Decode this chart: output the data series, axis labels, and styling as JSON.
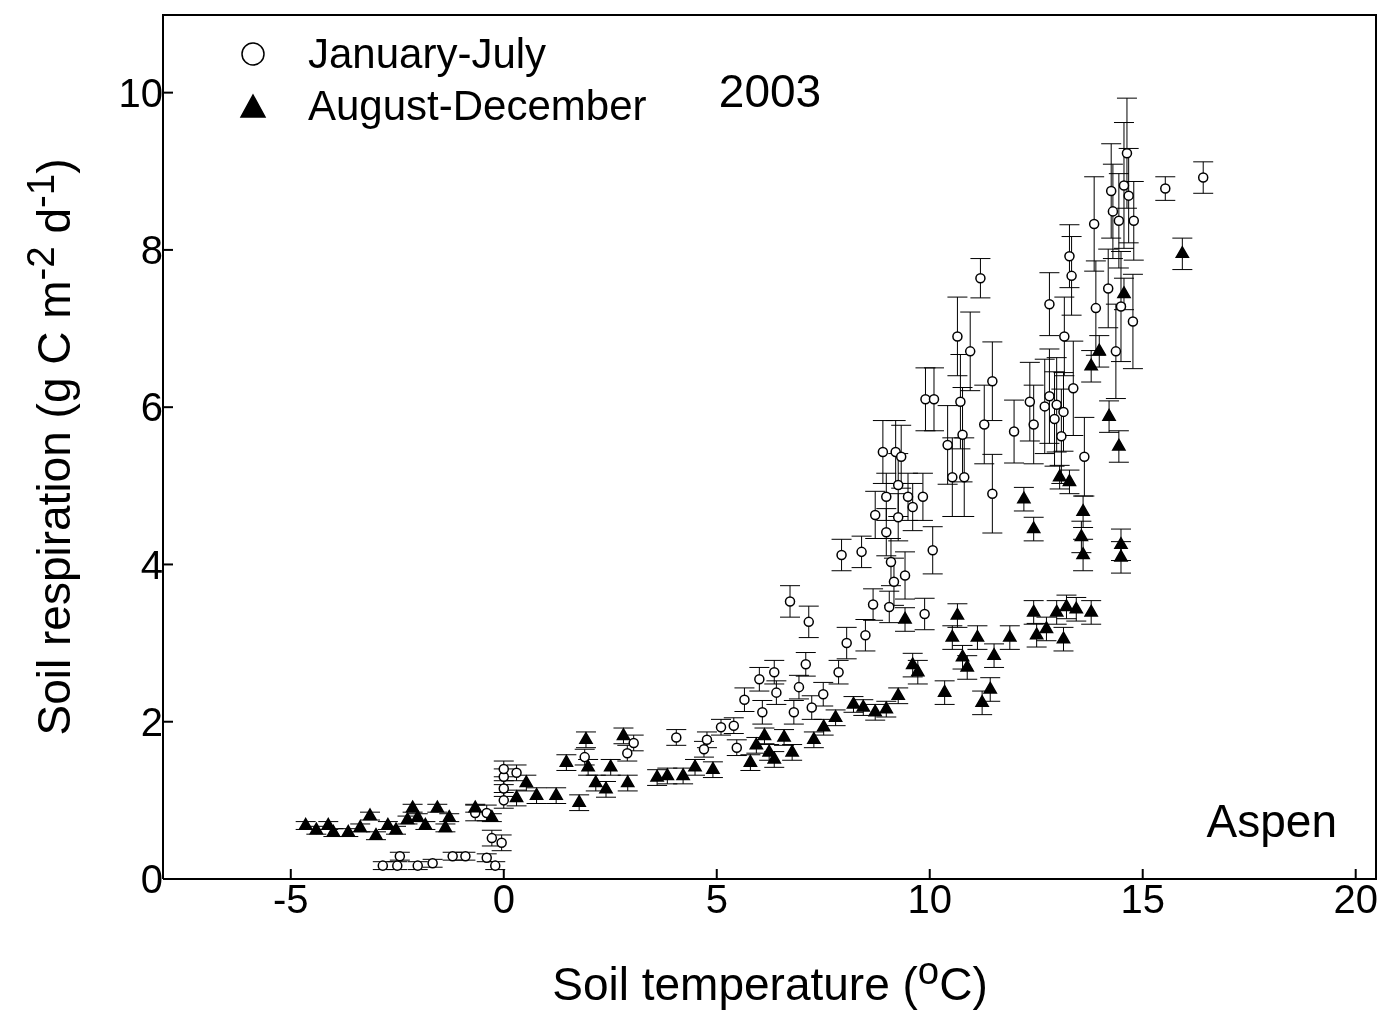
{
  "chart_data": {
    "type": "scatter",
    "xlabel": "Soil temperature ($^{o}$C)",
    "ylabel": "Soil respiration (g C m$^{-2}$ d$^{-1}$)",
    "xlim": [
      -8,
      20.5
    ],
    "xticks": [
      -5,
      0,
      5,
      10,
      15,
      20
    ],
    "ylim": [
      0,
      11
    ],
    "yticks": [
      0,
      2,
      4,
      6,
      8,
      10
    ],
    "legend": "top left",
    "annotations": [
      "2003",
      "Aspen"
    ],
    "series": [
      {
        "name": "January-July",
        "color": "#ffffff",
        "marker": "circle",
        "x": [
          -2.84,
          -2.5,
          -2.44,
          -2.02,
          -1.67,
          -1.2,
          -0.9,
          -0.67,
          -0.4,
          -0.28,
          -0.4,
          -0.2,
          -0.05,
          0,
          0,
          0,
          0,
          0.3,
          1.9,
          2.9,
          3.05,
          4.05,
          4.7,
          4.77,
          5.1,
          5.4,
          5.47,
          5.65,
          6.0,
          6.07,
          6.35,
          6.4,
          6.72,
          6.81,
          6.93,
          7.09,
          7.16,
          7.23,
          7.5,
          7.86,
          7.93,
          8.05,
          8.4,
          8.49,
          8.67,
          8.72,
          8.9,
          8.98,
          8.98,
          9.05,
          9.09,
          9.16,
          9.2,
          9.26,
          9.26,
          9.33,
          9.42,
          9.49,
          9.6,
          9.84,
          9.88,
          9.9,
          10.1,
          10.07,
          10.42,
          10.53,
          10.65,
          10.72,
          10.77,
          10.81,
          10.95,
          11.19,
          11.28,
          11.47,
          11.47,
          11.98,
          12.35,
          12.44,
          12.7,
          12.81,
          12.81,
          12.93,
          12.98,
          13.09,
          13.14,
          13.16,
          13.28,
          13.33,
          13.37,
          13.63,
          13.86,
          13.9,
          14.19,
          14.26,
          14.3,
          14.37,
          14.44,
          14.49,
          14.56,
          14.63,
          14.67,
          14.77,
          14.79,
          15.53,
          16.42
        ],
        "values": [
          0.17,
          0.17,
          0.29,
          0.17,
          0.2,
          0.29,
          0.29,
          0.84,
          0.84,
          0.52,
          0.27,
          0.17,
          0.46,
          1.0,
          1.15,
          1.3,
          1.4,
          1.35,
          1.55,
          1.6,
          1.73,
          1.8,
          1.65,
          1.77,
          1.93,
          1.95,
          1.67,
          2.28,
          2.54,
          2.12,
          2.63,
          2.37,
          3.53,
          2.12,
          2.44,
          2.73,
          3.27,
          2.18,
          2.35,
          2.63,
          4.12,
          3.0,
          4.16,
          3.1,
          3.49,
          4.63,
          5.43,
          4.86,
          4.41,
          3.46,
          4.03,
          3.78,
          5.43,
          5.01,
          4.6,
          5.37,
          3.86,
          4.86,
          4.73,
          4.86,
          3.37,
          6.1,
          6.1,
          4.18,
          5.52,
          5.11,
          6.9,
          6.07,
          5.65,
          5.11,
          6.71,
          7.64,
          5.78,
          6.33,
          4.9,
          5.69,
          6.07,
          5.78,
          6.01,
          6.14,
          7.31,
          5.85,
          6.03,
          5.63,
          5.94,
          6.9,
          7.92,
          7.67,
          6.24,
          5.37,
          8.33,
          7.26,
          7.51,
          8.75,
          8.49,
          6.71,
          8.37,
          7.28,
          8.82,
          9.23,
          8.69,
          7.09,
          8.37,
          8.78,
          8.92
        ],
        "errors": [
          0.05,
          0.05,
          0.05,
          0.05,
          0.05,
          0.05,
          0.05,
          0.1,
          0.1,
          0.1,
          0.05,
          0.05,
          0.1,
          0.1,
          0.1,
          0.1,
          0.1,
          0.1,
          0.1,
          0.1,
          0.1,
          0.1,
          0.1,
          0.1,
          0.1,
          0.1,
          0.1,
          0.15,
          0.15,
          0.15,
          0.15,
          0.15,
          0.2,
          0.15,
          0.15,
          0.15,
          0.2,
          0.15,
          0.15,
          0.15,
          0.2,
          0.2,
          0.2,
          0.2,
          0.2,
          0.3,
          0.4,
          0.3,
          0.3,
          0.2,
          0.3,
          0.3,
          0.4,
          0.4,
          0.3,
          0.4,
          0.3,
          0.3,
          0.3,
          0.3,
          0.2,
          0.4,
          0.4,
          0.3,
          0.5,
          0.5,
          0.5,
          0.6,
          0.6,
          0.5,
          0.5,
          0.25,
          0.5,
          0.5,
          0.5,
          0.4,
          0.5,
          0.5,
          0.6,
          0.6,
          0.4,
          0.6,
          0.6,
          0.6,
          0.5,
          0.5,
          0.4,
          0.5,
          0.6,
          0.5,
          0.6,
          0.6,
          0.5,
          0.6,
          0.6,
          0.6,
          0.6,
          0.7,
          0.8,
          0.7,
          0.6,
          0.6,
          0.5,
          0.15,
          0.2
        ]
      },
      {
        "name": "August-December",
        "color": "#000000",
        "marker": "triangle",
        "x": [
          -4.65,
          -4.4,
          -4.12,
          -4.0,
          -3.65,
          -3.37,
          -3.14,
          -3.0,
          -2.72,
          -2.53,
          -2.26,
          -2.14,
          -2.02,
          -1.84,
          -1.56,
          -1.37,
          -1.28,
          -0.67,
          -0.28,
          0.3,
          0.53,
          0.77,
          1.23,
          1.47,
          1.77,
          1.93,
          1.98,
          2.16,
          2.4,
          2.51,
          2.81,
          2.91,
          3.6,
          3.84,
          4.21,
          4.49,
          4.91,
          5.79,
          5.93,
          6.12,
          6.23,
          6.35,
          6.58,
          6.77,
          7.28,
          7.51,
          7.79,
          8.21,
          8.44,
          8.72,
          8.98,
          9.26,
          9.42,
          9.6,
          9.72,
          10.35,
          10.53,
          10.65,
          10.77,
          10.88,
          11.12,
          11.23,
          11.42,
          11.51,
          11.88,
          12.21,
          12.44,
          12.44,
          12.51,
          12.74,
          12.98,
          13.05,
          13.14,
          13.21,
          13.28,
          13.44,
          13.56,
          13.6,
          13.6,
          13.79,
          13.79,
          13.98,
          14.21,
          14.44,
          14.49,
          14.49,
          14.56,
          15.93
        ],
        "values": [
          0.68,
          0.62,
          0.68,
          0.59,
          0.59,
          0.65,
          0.8,
          0.55,
          0.68,
          0.62,
          0.75,
          0.9,
          0.78,
          0.68,
          0.9,
          0.65,
          0.78,
          0.9,
          0.78,
          1.03,
          1.22,
          1.06,
          1.06,
          1.48,
          0.97,
          1.77,
          1.42,
          1.22,
          1.14,
          1.42,
          1.82,
          1.22,
          1.29,
          1.31,
          1.31,
          1.42,
          1.39,
          1.48,
          1.7,
          1.82,
          1.61,
          1.52,
          1.8,
          1.61,
          1.77,
          1.93,
          2.05,
          2.22,
          2.18,
          2.12,
          2.16,
          2.33,
          3.3,
          2.72,
          2.63,
          2.37,
          3.07,
          3.35,
          2.82,
          2.69,
          3.07,
          2.24,
          2.41,
          2.84,
          3.07,
          4.83,
          4.45,
          3.39,
          3.1,
          3.18,
          3.39,
          5.11,
          3.05,
          3.46,
          5.05,
          3.43,
          4.35,
          4.12,
          4.67,
          3.39,
          6.52,
          6.71,
          5.88,
          5.5,
          4.25,
          4.09,
          7.44,
          7.95
        ],
        "errors": [
          0.05,
          0.05,
          0.05,
          0.05,
          0.05,
          0.05,
          0.05,
          0.05,
          0.05,
          0.05,
          0.05,
          0.05,
          0.05,
          0.05,
          0.05,
          0.05,
          0.05,
          0.05,
          0.05,
          0.1,
          0.1,
          0.1,
          0.1,
          0.1,
          0.1,
          0.1,
          0.1,
          0.1,
          0.1,
          0.1,
          0.1,
          0.1,
          0.1,
          0.1,
          0.1,
          0.1,
          0.1,
          0.1,
          0.1,
          0.1,
          0.1,
          0.1,
          0.1,
          0.1,
          0.1,
          0.1,
          0.1,
          0.1,
          0.1,
          0.1,
          0.1,
          0.1,
          0.15,
          0.15,
          0.15,
          0.15,
          0.15,
          0.15,
          0.15,
          0.15,
          0.15,
          0.15,
          0.15,
          0.15,
          0.15,
          0.15,
          0.15,
          0.15,
          0.15,
          0.15,
          0.15,
          0.15,
          0.15,
          0.15,
          0.15,
          0.15,
          0.2,
          0.2,
          0.2,
          0.15,
          0.2,
          0.2,
          0.2,
          0.2,
          0.2,
          0.2,
          0.2,
          0.2
        ]
      }
    ]
  }
}
